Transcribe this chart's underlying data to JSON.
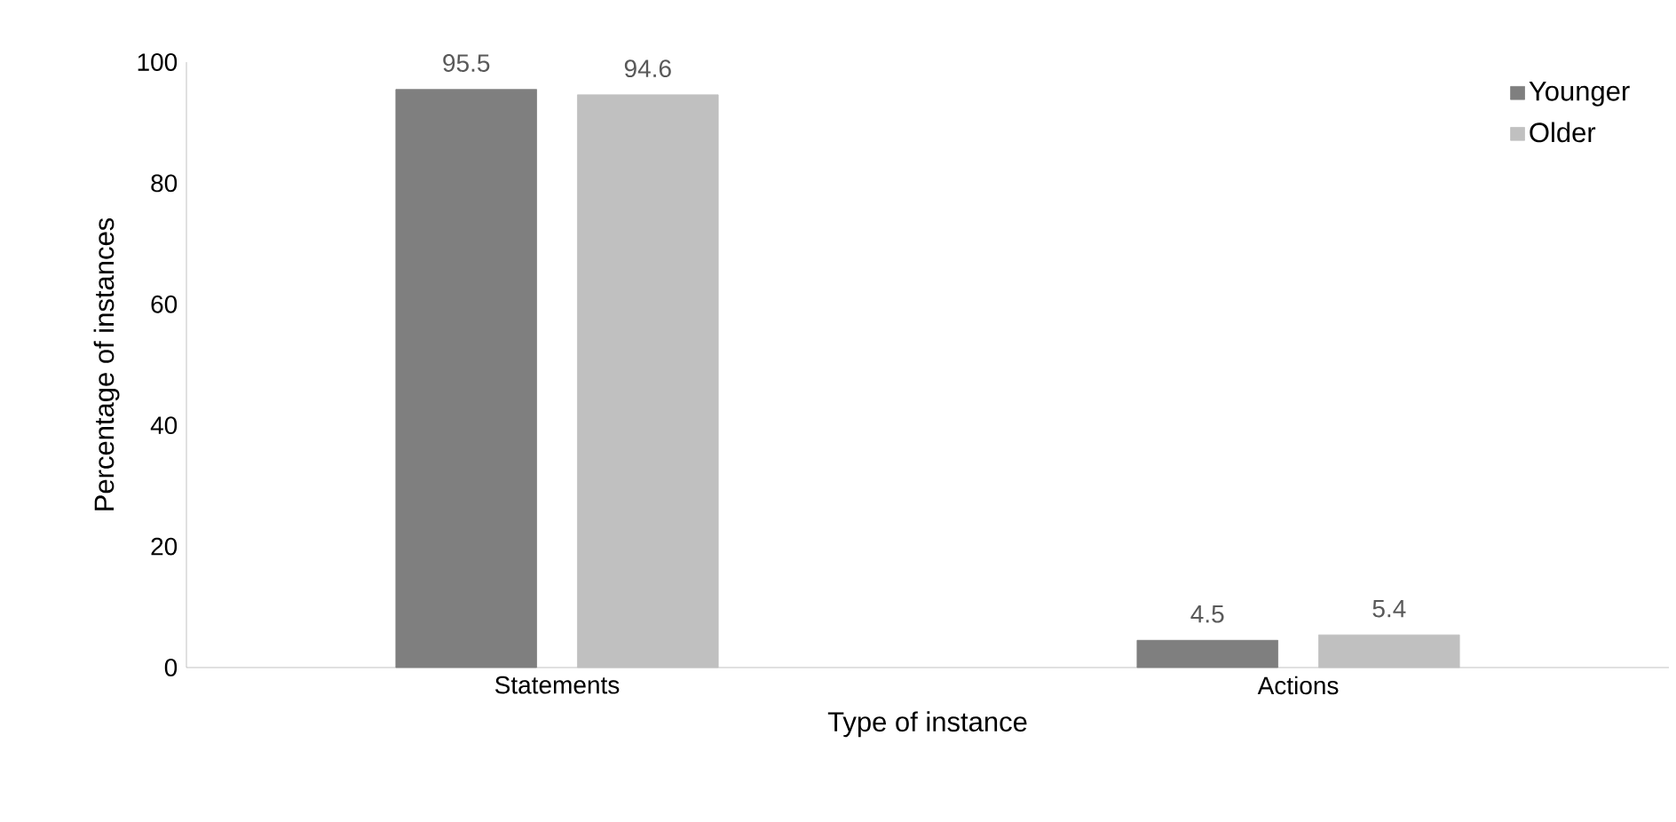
{
  "chart_data": {
    "type": "bar",
    "xlabel": "Type of instance",
    "ylabel": "Percentage of instances",
    "categories": [
      "Statements",
      "Actions"
    ],
    "series": [
      {
        "name": "Younger",
        "color": "#7f7f7f",
        "values": [
          95.5,
          4.5
        ]
      },
      {
        "name": "Older",
        "color": "#c0c0c0",
        "values": [
          94.6,
          5.4
        ]
      }
    ],
    "ylim": [
      0,
      100
    ],
    "yticks": [
      0,
      20,
      40,
      60,
      80,
      100
    ],
    "data_labels": true,
    "legend": "top right",
    "grid": false
  }
}
